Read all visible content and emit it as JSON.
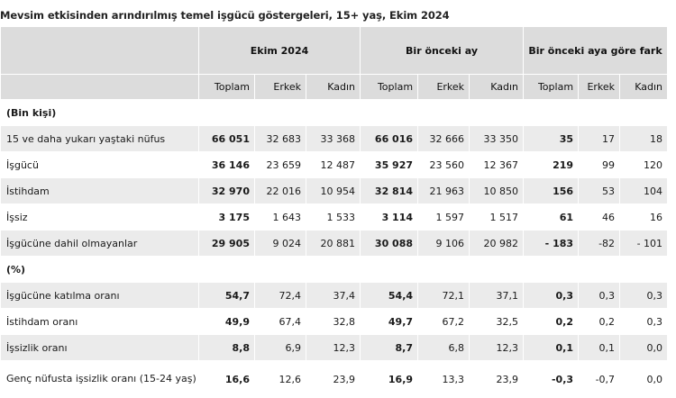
{
  "title": "Mevsim etkisinden arındırılmış temel işgücü göstergeleri, 15+ yaş, Ekim 2024",
  "groups": [
    "Ekim 2024",
    "Bir önceki ay",
    "Bir önceki aya göre fark"
  ],
  "subheaders": [
    "Toplam",
    "Erkek",
    "Kadın",
    "Toplam",
    "Erkek",
    "Kadın",
    "Toplam",
    "Erkek",
    "Kadın"
  ],
  "section1": "(Bin kişi)",
  "section2": "(%)",
  "rows": [
    {
      "label": "15 ve daha yukarı yaştaki nüfus",
      "values": [
        "66 051",
        "32 683",
        "33 368",
        "66 016",
        "32 666",
        "33 350",
        "35",
        "17",
        "18"
      ]
    },
    {
      "label": "İşgücü",
      "values": [
        "36 146",
        "23 659",
        "12 487",
        "35 927",
        "23 560",
        "12 367",
        "219",
        "99",
        "120"
      ]
    },
    {
      "label": "İstihdam",
      "values": [
        "32 970",
        "22 016",
        "10 954",
        "32 814",
        "21 963",
        "10 850",
        "156",
        "53",
        "104"
      ]
    },
    {
      "label": "İşsiz",
      "values": [
        "3 175",
        "1 643",
        "1 533",
        "3 114",
        "1 597",
        "1 517",
        "61",
        "46",
        "16"
      ]
    },
    {
      "label": "İşgücüne dahil olmayanlar",
      "values": [
        "29 905",
        "9 024",
        "20 881",
        "30 088",
        "9 106",
        "20 982",
        "- 183",
        "-82",
        "- 101"
      ]
    },
    {
      "label": "İşgücüne katılma oranı",
      "values": [
        "54,7",
        "72,4",
        "37,4",
        "54,4",
        "72,1",
        "37,1",
        "0,3",
        "0,3",
        "0,3"
      ]
    },
    {
      "label": "İstihdam oranı",
      "values": [
        "49,9",
        "67,4",
        "32,8",
        "49,7",
        "67,2",
        "32,5",
        "0,2",
        "0,2",
        "0,3"
      ]
    },
    {
      "label": "İşsizlik oranı",
      "values": [
        "8,8",
        "6,9",
        "12,3",
        "8,7",
        "6,8",
        "12,3",
        "0,1",
        "0,1",
        "0,0"
      ]
    },
    {
      "label": "Genç nüfusta işsizlik oranı (15-24 yaş)",
      "values": [
        "16,6",
        "12,6",
        "23,9",
        "16,9",
        "13,3",
        "23,9",
        "-0,3",
        "-0,7",
        "0,0"
      ]
    }
  ]
}
